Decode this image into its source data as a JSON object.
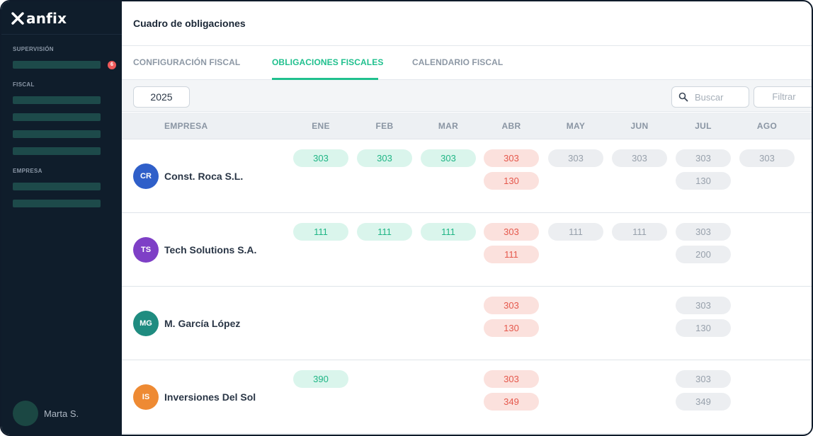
{
  "brand": {
    "name": "anfix"
  },
  "sidebar": {
    "sections": [
      {
        "heading": "SUPERVISIÓN",
        "badge": "6"
      },
      {
        "heading": "FISCAL"
      },
      {
        "heading": "EMPRESA"
      }
    ],
    "user": {
      "name": "Marta S."
    }
  },
  "header": {
    "title": "Cuadro de obligaciones"
  },
  "tabs": [
    {
      "label": "CONFIGURACIÓN FISCAL",
      "active": false
    },
    {
      "label": "OBLIGACIONES FISCALES",
      "active": true
    },
    {
      "label": "CALENDARIO FISCAL",
      "active": false
    }
  ],
  "toolbar": {
    "year": "2025",
    "search_placeholder": "Buscar",
    "filter_label": "Filtrar"
  },
  "table": {
    "company_header": "EMPRESA",
    "months": [
      "ENE",
      "FEB",
      "MAR",
      "ABR",
      "MAY",
      "JUN",
      "JUL",
      "AGO"
    ],
    "rows": [
      {
        "initials": "CR",
        "avatar_color": "#2f5fc9",
        "company": "Const. Roca S.L.",
        "cells": [
          [
            {
              "code": "303",
              "status": "green"
            }
          ],
          [
            {
              "code": "303",
              "status": "green"
            }
          ],
          [
            {
              "code": "303",
              "status": "green"
            }
          ],
          [
            {
              "code": "303",
              "status": "red"
            },
            {
              "code": "130",
              "status": "red"
            }
          ],
          [
            {
              "code": "303",
              "status": "gray"
            }
          ],
          [
            {
              "code": "303",
              "status": "gray"
            }
          ],
          [
            {
              "code": "303",
              "status": "gray"
            },
            {
              "code": "130",
              "status": "gray"
            }
          ],
          [
            {
              "code": "303",
              "status": "gray"
            }
          ]
        ]
      },
      {
        "initials": "TS",
        "avatar_color": "#7e3fc6",
        "company": "Tech Solutions S.A.",
        "cells": [
          [
            {
              "code": "111",
              "status": "green"
            }
          ],
          [
            {
              "code": "111",
              "status": "green"
            }
          ],
          [
            {
              "code": "111",
              "status": "green"
            }
          ],
          [
            {
              "code": "303",
              "status": "red"
            },
            {
              "code": "111",
              "status": "red"
            }
          ],
          [
            {
              "code": "111",
              "status": "gray"
            }
          ],
          [
            {
              "code": "111",
              "status": "gray"
            }
          ],
          [
            {
              "code": "303",
              "status": "gray"
            },
            {
              "code": "200",
              "status": "gray"
            }
          ],
          []
        ]
      },
      {
        "initials": "MG",
        "avatar_color": "#1f8c80",
        "company": "M. García López",
        "cells": [
          [],
          [],
          [],
          [
            {
              "code": "303",
              "status": "red"
            },
            {
              "code": "130",
              "status": "red"
            }
          ],
          [],
          [],
          [
            {
              "code": "303",
              "status": "gray"
            },
            {
              "code": "130",
              "status": "gray"
            }
          ],
          []
        ]
      },
      {
        "initials": "IS",
        "avatar_color": "#ee8a33",
        "company": "Inversiones Del Sol",
        "cells": [
          [
            {
              "code": "390",
              "status": "green"
            }
          ],
          [],
          [],
          [
            {
              "code": "303",
              "status": "red"
            },
            {
              "code": "349",
              "status": "red"
            }
          ],
          [],
          [],
          [
            {
              "code": "303",
              "status": "gray"
            },
            {
              "code": "349",
              "status": "gray"
            }
          ],
          []
        ]
      }
    ]
  }
}
